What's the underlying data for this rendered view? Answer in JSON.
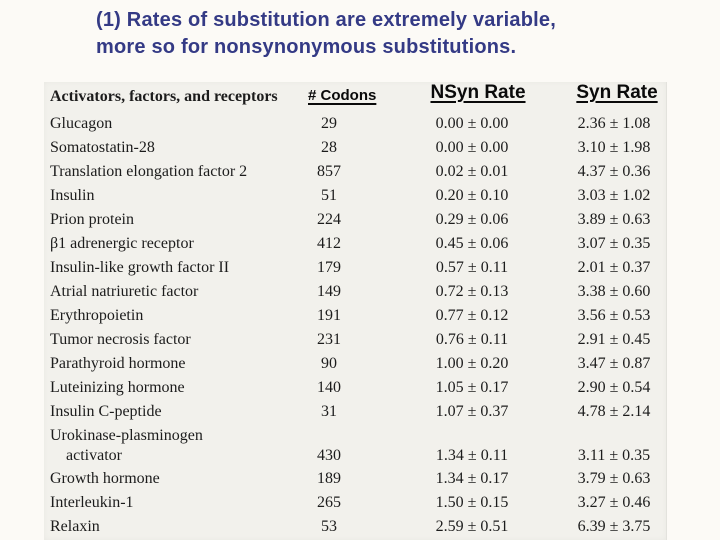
{
  "slide": {
    "title_line1": "(1) Rates of substitution are extremely variable,",
    "title_line2": "more so for nonsynonymous substitutions.",
    "title_color": "#343a85"
  },
  "table": {
    "row_group_header": "Activators, factors, and receptors",
    "column_headers": {
      "codons": "# Codons",
      "nsyn": "NSyn Rate",
      "syn": "Syn Rate"
    },
    "rows": [
      {
        "label": "Glucagon",
        "codons": "29",
        "nsyn": "0.00 ± 0.00",
        "syn": "2.36 ± 1.08"
      },
      {
        "label": "Somatostatin-28",
        "codons": "28",
        "nsyn": "0.00 ± 0.00",
        "syn": "3.10 ± 1.98"
      },
      {
        "label": "Translation elongation factor 2",
        "codons": "857",
        "nsyn": "0.02 ± 0.01",
        "syn": "4.37 ± 0.36"
      },
      {
        "label": "Insulin",
        "codons": "51",
        "nsyn": "0.20 ± 0.10",
        "syn": "3.03 ± 1.02"
      },
      {
        "label": "Prion protein",
        "codons": "224",
        "nsyn": "0.29 ± 0.06",
        "syn": "3.89 ± 0.63"
      },
      {
        "label": "β1 adrenergic receptor",
        "codons": "412",
        "nsyn": "0.45 ± 0.06",
        "syn": "3.07 ± 0.35"
      },
      {
        "label": "Insulin-like growth factor II",
        "codons": "179",
        "nsyn": "0.57 ± 0.11",
        "syn": "2.01 ± 0.37"
      },
      {
        "label": "Atrial natriuretic factor",
        "codons": "149",
        "nsyn": "0.72 ± 0.13",
        "syn": "3.38 ± 0.60"
      },
      {
        "label": "Erythropoietin",
        "codons": "191",
        "nsyn": "0.77 ± 0.12",
        "syn": "3.56 ± 0.53"
      },
      {
        "label": "Tumor necrosis factor",
        "codons": "231",
        "nsyn": "0.76 ± 0.11",
        "syn": "2.91 ± 0.45"
      },
      {
        "label": "Parathyroid hormone",
        "codons": "90",
        "nsyn": "1.00 ± 0.20",
        "syn": "3.47 ± 0.87"
      },
      {
        "label": "Luteinizing hormone",
        "codons": "140",
        "nsyn": "1.05 ± 0.17",
        "syn": "2.90 ± 0.54"
      },
      {
        "label": "Insulin C-peptide",
        "codons": "31",
        "nsyn": "1.07 ± 0.37",
        "syn": "4.78 ± 2.14"
      },
      {
        "label": "Urokinase-plasminogen",
        "label2": "activator",
        "codons": "430",
        "nsyn": "1.34 ± 0.11",
        "syn": "3.11 ± 0.35"
      },
      {
        "label": "Growth hormone",
        "codons": "189",
        "nsyn": "1.34 ± 0.17",
        "syn": "3.79 ± 0.63"
      },
      {
        "label": "Interleukin-1",
        "codons": "265",
        "nsyn": "1.50 ± 0.15",
        "syn": "3.27 ± 0.46"
      },
      {
        "label": "Relaxin",
        "codons": "53",
        "nsyn": "2.59 ± 0.51",
        "syn": "6.39 ± 3.75"
      }
    ]
  }
}
